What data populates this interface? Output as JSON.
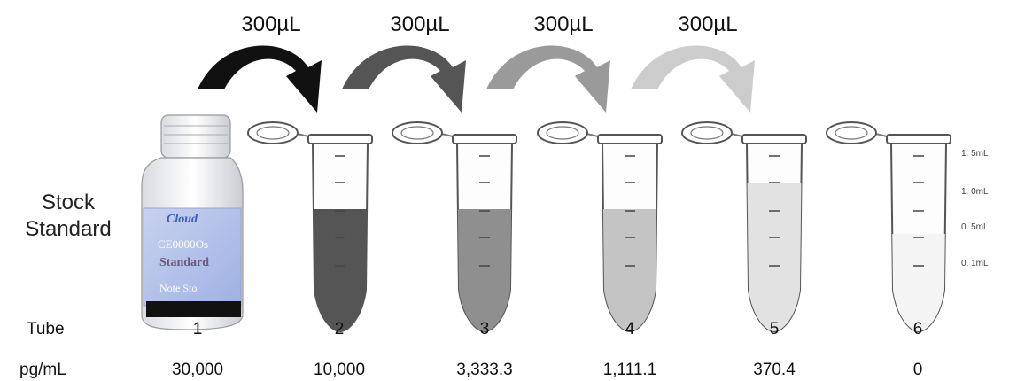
{
  "transfer_volumes": [
    "300µL",
    "300µL",
    "300µL",
    "300µL"
  ],
  "stock_label": {
    "line1": "Stock",
    "line2": "Standard"
  },
  "vial_label": {
    "brand": "Cloud",
    "code": "CE0000Os",
    "name": "Standard",
    "note": "Note   Sto"
  },
  "scale_labels": [
    "1. 5mL",
    "1. 0mL",
    "0. 5mL",
    "0. 1mL"
  ],
  "table": {
    "tube_header": "Tube",
    "conc_header": "pg/mL",
    "tubes": [
      "1",
      "2",
      "3",
      "4",
      "5",
      "6"
    ],
    "concentrations": [
      "30,000",
      "10,000",
      "3,333.3",
      "1,111.1",
      "370.4",
      "0"
    ]
  },
  "colors": {
    "arrows": [
      "#111111",
      "#555555",
      "#9a9a9a",
      "#cccccc"
    ],
    "tube_fills": [
      "#555555",
      "#8f8f8f",
      "#c4c4c4",
      "#e2e2e2",
      "#f4f4f4"
    ]
  }
}
